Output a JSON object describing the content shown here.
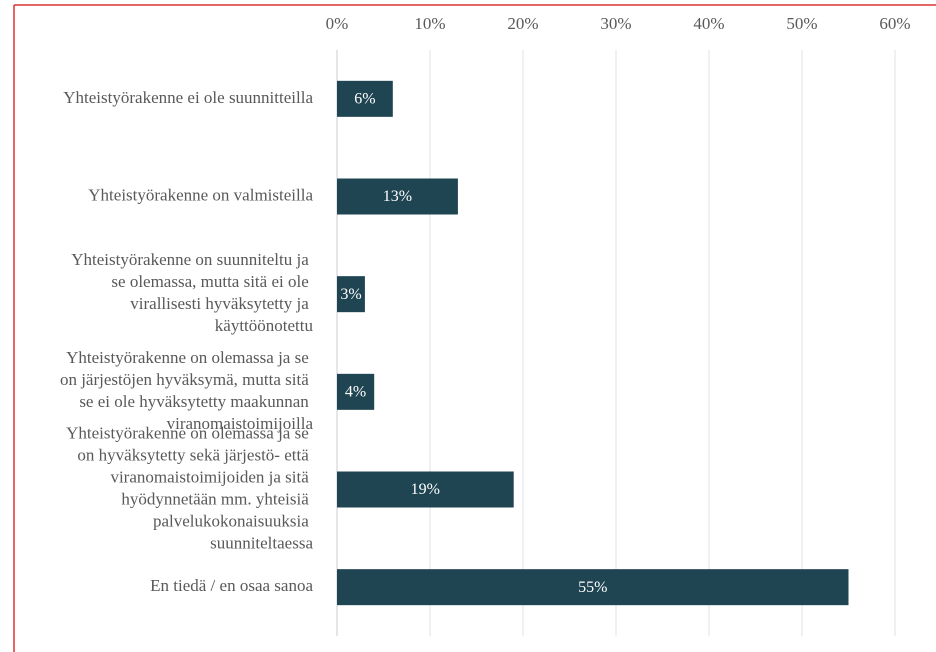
{
  "chart_data": {
    "type": "bar",
    "orientation": "horizontal",
    "categories": [
      "Yhteistyörakenne ei ole suunnitteilla",
      "Yhteistyörakenne on valmisteilla",
      "Yhteistyörakenne on suunniteltu ja se olemassa, mutta sitä ei ole virallisesti hyväksytetty ja käyttöönotettu",
      "Yhteistyörakenne on olemassa ja se on järjestöjen hyväksymä, mutta sitä se ei ole hyväksytetty maakunnan viranomaistoimijoilla",
      "Yhteistyörakenne on olemassa ja se on hyväksytetty sekä järjestö- että viranomaistoimijoiden ja sitä hyödynnetään mm. yhteisiä palvelukokonaisuuksia suunniteltaessa",
      "En tiedä / en osaa sanoa"
    ],
    "values": [
      6,
      13,
      3,
      4,
      19,
      55
    ],
    "value_labels": [
      "6%",
      "13%",
      "3%",
      "4%",
      "19%",
      "55%"
    ],
    "color": "#1f4452",
    "xlim": [
      0,
      60
    ],
    "xticks": [
      {
        "value": 0,
        "label": "0%"
      },
      {
        "value": 10,
        "label": "10%"
      },
      {
        "value": 20,
        "label": "20%"
      },
      {
        "value": 30,
        "label": "30%"
      },
      {
        "value": 40,
        "label": "40%"
      },
      {
        "value": 50,
        "label": "50%"
      },
      {
        "value": 60,
        "label": "60%"
      }
    ],
    "grid": true
  }
}
